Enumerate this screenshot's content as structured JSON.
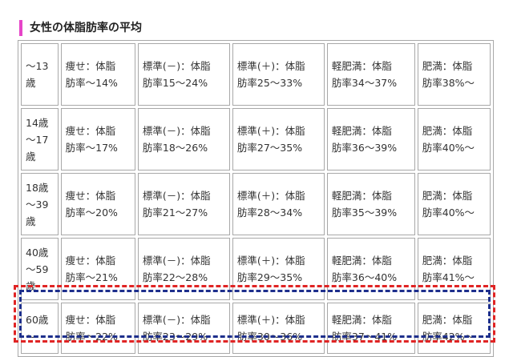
{
  "heading": "女性の体脂肪率の平均",
  "rows": [
    {
      "age": [
        "～13",
        "歳"
      ],
      "cells": [
        [
          "痩せ：体脂",
          "肪率～14%"
        ],
        [
          "標準(－)：体脂",
          "肪率15～24%"
        ],
        [
          "標準(＋)：体脂",
          "肪率25～33%"
        ],
        [
          "軽肥満：体脂",
          "肪率34～37%"
        ],
        [
          "肥満：体脂",
          "肪率38%～"
        ]
      ]
    },
    {
      "age": [
        "14歳",
        "～17",
        "歳"
      ],
      "cells": [
        [
          "痩せ：体脂",
          "肪率～17%"
        ],
        [
          "標準(－)：体脂",
          "肪率18～26%"
        ],
        [
          "標準(＋)：体脂",
          "肪率27～35%"
        ],
        [
          "軽肥満：体脂",
          "肪率36～39%"
        ],
        [
          "肥満：体脂",
          "肪率40%～"
        ]
      ]
    },
    {
      "age": [
        "18歳",
        "～39",
        "歳"
      ],
      "cells": [
        [
          "痩せ：体脂",
          "肪率～20%"
        ],
        [
          "標準(－)：体脂",
          "肪率21～27%"
        ],
        [
          "標準(＋)：体脂",
          "肪率28～34%"
        ],
        [
          "軽肥満：体脂",
          "肪率35～39%"
        ],
        [
          "肥満：体脂",
          "肪率40%～"
        ]
      ]
    },
    {
      "age": [
        "40歳",
        "～59",
        "歳"
      ],
      "cells": [
        [
          "痩せ：体脂",
          "肪率～21%"
        ],
        [
          "標準(－)：体脂",
          "肪率22～28%"
        ],
        [
          "標準(＋)：体脂",
          "肪率29～35%"
        ],
        [
          "軽肥満：体脂",
          "肪率36～40%"
        ],
        [
          "肥満：体脂",
          "肪率41%～"
        ]
      ]
    },
    {
      "age": [
        "60歳",
        "～"
      ],
      "cells": [
        [
          "痩せ：体脂",
          "肪率～22%"
        ],
        [
          "標準(－)：体脂",
          "肪率23～29%"
        ],
        [
          "標準(＋)：体脂",
          "肪率30～36%"
        ],
        [
          "軽肥満：体脂",
          "肪率37～41%"
        ],
        [
          "肥満：体脂",
          "肪率42%～"
        ]
      ]
    }
  ],
  "colors": {
    "heading_accent": "#e645c8",
    "highlight_outer": "#e02424",
    "highlight_inner": "#1d2f8c",
    "table_border": "#a8a8a8"
  }
}
